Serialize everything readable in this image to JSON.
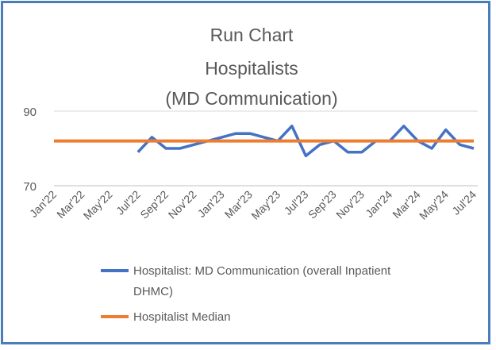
{
  "chart_data": {
    "type": "line",
    "title_lines": [
      "Run Chart",
      "Hospitalists",
      "(MD Communication)"
    ],
    "xlabel": "",
    "ylabel": "",
    "ylim": [
      70,
      90
    ],
    "yticks": [
      70,
      90
    ],
    "grid": false,
    "legend_position": "bottom",
    "x_labels": [
      "Jan'22",
      "Mar'22",
      "May'22",
      "Jul'22",
      "Sep'22",
      "Nov'22",
      "Jan'23",
      "Mar'23",
      "May'23",
      "Jul'23",
      "Sep'23",
      "Nov'23",
      "Jan'24",
      "Mar'24",
      "May'24",
      "Jul'24"
    ],
    "series": [
      {
        "name": "Hospitalist: MD Communication (overall Inpatient DHMC)",
        "legend_lines": [
          "Hospitalist: MD Communication (overall Inpatient",
          "DHMC)"
        ],
        "color": "#4472c4",
        "values": [
          null,
          null,
          null,
          null,
          null,
          null,
          79,
          83,
          80,
          80,
          81,
          82,
          83,
          84,
          84,
          83,
          82,
          86,
          78,
          81,
          82,
          79,
          79,
          82,
          82,
          86,
          82,
          80,
          85,
          81,
          80
        ]
      },
      {
        "name": "Hospitalist Median",
        "legend_lines": [
          "Hospitalist Median"
        ],
        "color": "#ed7d31",
        "values": [
          82,
          82,
          82,
          82,
          82,
          82,
          82,
          82,
          82,
          82,
          82,
          82,
          82,
          82,
          82,
          82,
          82,
          82,
          82,
          82,
          82,
          82,
          82,
          82,
          82,
          82,
          82,
          82,
          82,
          82,
          82
        ]
      }
    ]
  }
}
